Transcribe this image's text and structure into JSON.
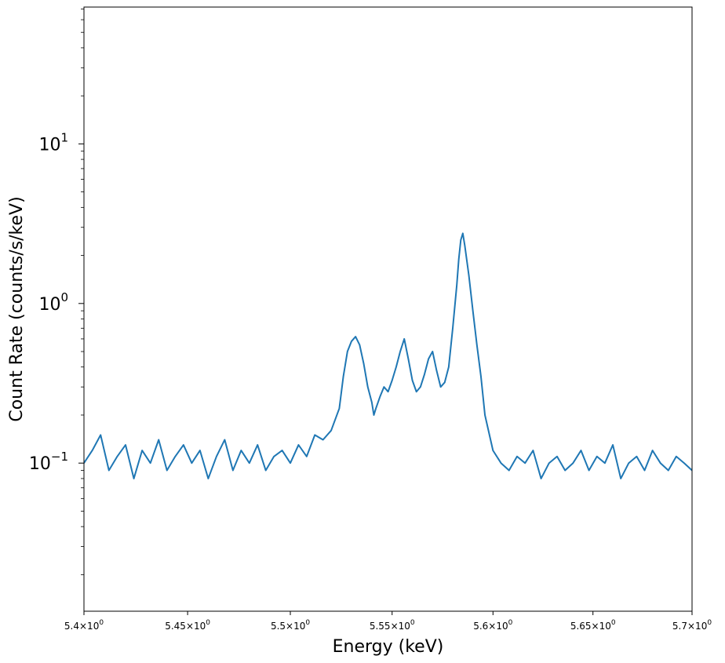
{
  "chart_data": {
    "type": "line",
    "title": "",
    "xlabel": "Energy (keV)",
    "ylabel": "Count Rate (counts/s/keV)",
    "x_scale": "log",
    "y_scale": "log",
    "xlim": [
      5.4,
      5.7
    ],
    "ylim": [
      0.0118,
      72
    ],
    "grid": false,
    "legend": "none",
    "colors": {
      "line": "#1f77b4",
      "axes": "#000000",
      "background": "#ffffff"
    },
    "x_ticks": [
      {
        "value": 5.4,
        "mantissa": "5.4",
        "base": "10",
        "exp": "0"
      },
      {
        "value": 5.45,
        "mantissa": "5.45",
        "base": "10",
        "exp": "0"
      },
      {
        "value": 5.5,
        "mantissa": "5.5",
        "base": "10",
        "exp": "0"
      },
      {
        "value": 5.55,
        "mantissa": "5.55",
        "base": "10",
        "exp": "0"
      },
      {
        "value": 5.6,
        "mantissa": "5.6",
        "base": "10",
        "exp": "0"
      },
      {
        "value": 5.65,
        "mantissa": "5.65",
        "base": "10",
        "exp": "0"
      },
      {
        "value": 5.7,
        "mantissa": "5.7",
        "base": "10",
        "exp": "0"
      }
    ],
    "y_ticks": [
      {
        "value": 0.1,
        "base": "10",
        "exp": "−1"
      },
      {
        "value": 1,
        "base": "10",
        "exp": "0"
      },
      {
        "value": 10,
        "base": "10",
        "exp": "1"
      }
    ],
    "series": [
      {
        "x": [
          5.4,
          5.404,
          5.408,
          5.412,
          5.416,
          5.42,
          5.424,
          5.428,
          5.432,
          5.436,
          5.44,
          5.444,
          5.448,
          5.452,
          5.456,
          5.46,
          5.464,
          5.468,
          5.472,
          5.476,
          5.48,
          5.484,
          5.488,
          5.492,
          5.496,
          5.5,
          5.504,
          5.508,
          5.512,
          5.516,
          5.52,
          5.524,
          5.526,
          5.528,
          5.53,
          5.532,
          5.534,
          5.536,
          5.538,
          5.54,
          5.541,
          5.542,
          5.544,
          5.546,
          5.548,
          5.55,
          5.552,
          5.554,
          5.556,
          5.558,
          5.56,
          5.562,
          5.564,
          5.566,
          5.568,
          5.57,
          5.572,
          5.574,
          5.576,
          5.578,
          5.58,
          5.582,
          5.583,
          5.584,
          5.585,
          5.586,
          5.588,
          5.59,
          5.592,
          5.594,
          5.596,
          5.6,
          5.604,
          5.608,
          5.612,
          5.616,
          5.62,
          5.624,
          5.628,
          5.632,
          5.636,
          5.64,
          5.644,
          5.648,
          5.652,
          5.656,
          5.66,
          5.664,
          5.668,
          5.672,
          5.676,
          5.68,
          5.684,
          5.688,
          5.692,
          5.696,
          5.7
        ],
        "y": [
          0.1,
          0.12,
          0.15,
          0.09,
          0.11,
          0.13,
          0.08,
          0.12,
          0.1,
          0.14,
          0.09,
          0.11,
          0.13,
          0.1,
          0.12,
          0.08,
          0.11,
          0.14,
          0.09,
          0.12,
          0.1,
          0.13,
          0.09,
          0.11,
          0.12,
          0.1,
          0.13,
          0.11,
          0.15,
          0.14,
          0.16,
          0.22,
          0.35,
          0.5,
          0.58,
          0.62,
          0.55,
          0.42,
          0.3,
          0.24,
          0.2,
          0.22,
          0.26,
          0.3,
          0.28,
          0.33,
          0.4,
          0.5,
          0.6,
          0.45,
          0.33,
          0.28,
          0.3,
          0.36,
          0.45,
          0.5,
          0.38,
          0.3,
          0.32,
          0.4,
          0.7,
          1.3,
          1.9,
          2.5,
          2.75,
          2.3,
          1.5,
          0.9,
          0.55,
          0.35,
          0.2,
          0.12,
          0.1,
          0.09,
          0.11,
          0.1,
          0.12,
          0.08,
          0.1,
          0.11,
          0.09,
          0.1,
          0.12,
          0.09,
          0.11,
          0.1,
          0.13,
          0.08,
          0.1,
          0.11,
          0.09,
          0.12,
          0.1,
          0.09,
          0.11,
          0.1,
          0.09
        ]
      }
    ]
  }
}
